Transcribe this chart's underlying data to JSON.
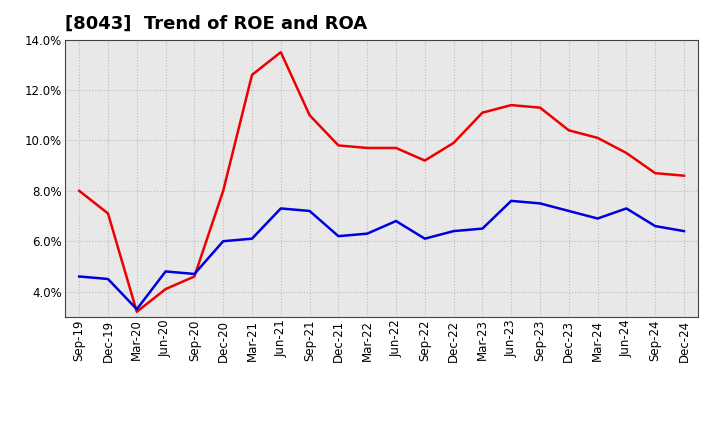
{
  "title": "[8043]  Trend of ROE and ROA",
  "labels": [
    "Sep-19",
    "Dec-19",
    "Mar-20",
    "Jun-20",
    "Sep-20",
    "Dec-20",
    "Mar-21",
    "Jun-21",
    "Sep-21",
    "Dec-21",
    "Mar-22",
    "Jun-22",
    "Sep-22",
    "Dec-22",
    "Mar-23",
    "Jun-23",
    "Sep-23",
    "Dec-23",
    "Mar-24",
    "Jun-24",
    "Sep-24",
    "Dec-24"
  ],
  "ROE": [
    8.0,
    7.1,
    3.2,
    4.1,
    4.6,
    8.0,
    12.6,
    13.5,
    11.0,
    9.8,
    9.7,
    9.7,
    9.2,
    9.9,
    11.1,
    11.4,
    11.3,
    10.4,
    10.1,
    9.5,
    8.7,
    8.6
  ],
  "ROA": [
    4.6,
    4.5,
    3.3,
    4.8,
    4.7,
    6.0,
    6.1,
    7.3,
    7.2,
    6.2,
    6.3,
    6.8,
    6.1,
    6.4,
    6.5,
    7.6,
    7.5,
    7.2,
    6.9,
    7.3,
    6.6,
    6.4
  ],
  "ROE_color": "#ee0000",
  "ROA_color": "#0000dd",
  "ylim_min": 3.0,
  "ylim_max": 14.0,
  "yticks": [
    4.0,
    6.0,
    8.0,
    10.0,
    12.0,
    14.0
  ],
  "background_color": "#ffffff",
  "plot_bg_color": "#e8e8e8",
  "grid_color": "#bbbbbb",
  "title_fontsize": 13,
  "legend_fontsize": 10,
  "tick_fontsize": 8.5
}
